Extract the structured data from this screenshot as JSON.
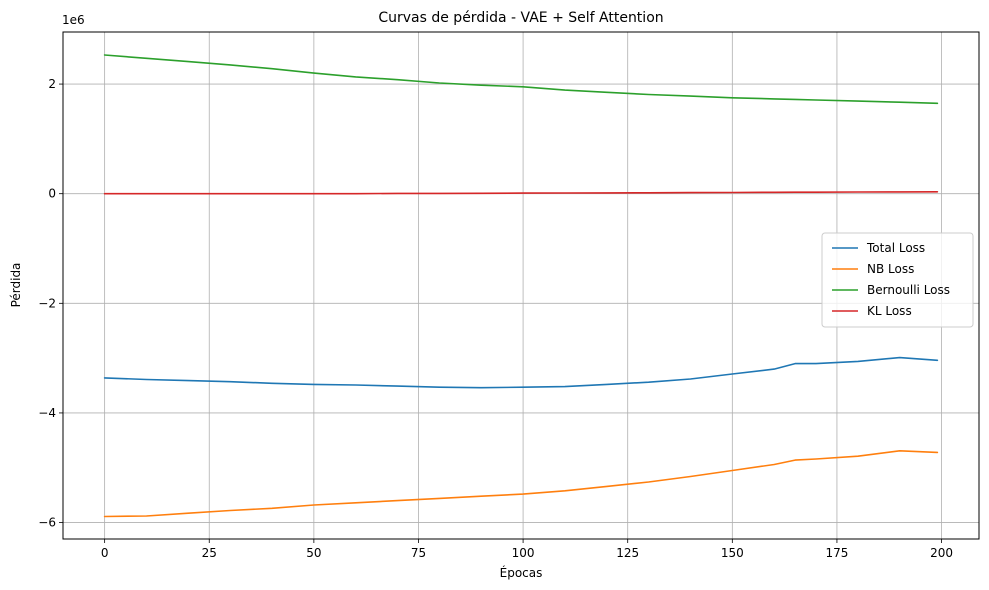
{
  "chart_data": {
    "type": "line",
    "title": "Curvas de pérdida - VAE + Self Attention",
    "xlabel": "Épocas",
    "ylabel": "Pérdida",
    "y_offset_label": "1e6",
    "xlim": [
      -9.95,
      208.95
    ],
    "ylim": [
      -6.3,
      2.95
    ],
    "x_ticks": [
      0,
      25,
      50,
      75,
      100,
      125,
      150,
      175,
      200
    ],
    "x_tick_labels": [
      "0",
      "25",
      "50",
      "75",
      "100",
      "125",
      "150",
      "175",
      "200"
    ],
    "y_ticks": [
      2,
      0,
      -2,
      -4,
      -6
    ],
    "y_tick_labels": [
      "2",
      "0",
      "−2",
      "−4",
      "−6"
    ],
    "grid": true,
    "legend_position": "center-right",
    "x": [
      0,
      10,
      20,
      30,
      40,
      50,
      60,
      70,
      80,
      90,
      100,
      110,
      120,
      130,
      140,
      150,
      160,
      165,
      170,
      180,
      190,
      199
    ],
    "series": [
      {
        "name": "Total Loss",
        "color": "#1f77b4",
        "values": [
          -3.36,
          -3.39,
          -3.41,
          -3.43,
          -3.46,
          -3.48,
          -3.49,
          -3.51,
          -3.53,
          -3.54,
          -3.53,
          -3.52,
          -3.48,
          -3.44,
          -3.38,
          -3.29,
          -3.2,
          -3.1,
          -3.1,
          -3.06,
          -2.99,
          -3.04
        ]
      },
      {
        "name": "NB Loss",
        "color": "#ff7f0e",
        "values": [
          -5.89,
          -5.88,
          -5.83,
          -5.78,
          -5.74,
          -5.68,
          -5.64,
          -5.6,
          -5.56,
          -5.52,
          -5.48,
          -5.42,
          -5.34,
          -5.26,
          -5.16,
          -5.05,
          -4.94,
          -4.86,
          -4.84,
          -4.79,
          -4.69,
          -4.72
        ]
      },
      {
        "name": "Bernoulli Loss",
        "color": "#2ca02c",
        "values": [
          2.53,
          2.47,
          2.41,
          2.35,
          2.28,
          2.2,
          2.13,
          2.08,
          2.02,
          1.98,
          1.95,
          1.89,
          1.85,
          1.81,
          1.78,
          1.75,
          1.73,
          1.72,
          1.71,
          1.69,
          1.67,
          1.65
        ]
      },
      {
        "name": "KL Loss",
        "color": "#d62728",
        "values": [
          0.0,
          0.0,
          0.0,
          0.0,
          0.0,
          0.0,
          0.0,
          0.005,
          0.005,
          0.008,
          0.01,
          0.012,
          0.015,
          0.017,
          0.02,
          0.022,
          0.025,
          0.027,
          0.028,
          0.03,
          0.032,
          0.034
        ]
      }
    ]
  }
}
